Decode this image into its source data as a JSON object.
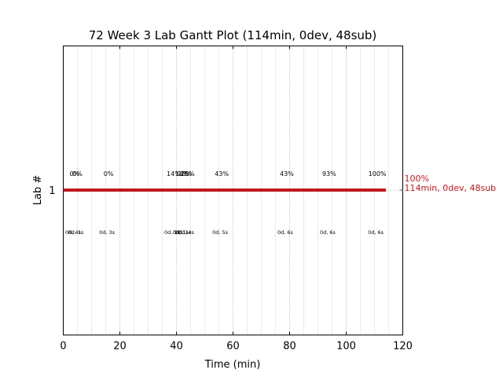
{
  "chart_data": {
    "type": "gantt",
    "title": "72 Week 3 Lab Gantt Plot (114min, 0dev, 48sub)",
    "xlabel": "Time (min)",
    "ylabel": "Lab #",
    "xlim": [
      0,
      120
    ],
    "x_ticks": [
      0,
      20,
      40,
      60,
      80,
      100,
      120
    ],
    "y_ticks": [
      1
    ],
    "grid": "vertical dotted, major every 20, minor every 5",
    "bar_color": "#c0171c",
    "bars": [
      {
        "lab": "1",
        "start": 0,
        "end": 114,
        "label_pct": "100%",
        "label_info": "114min, 0dev, 48sub"
      }
    ],
    "checkpoints": [
      {
        "x": 4,
        "pct": "0%",
        "info": "0d, 4s"
      },
      {
        "x": 5,
        "pct": "0%",
        "info": "0d, 1s"
      },
      {
        "x": 16,
        "pct": "0%",
        "info": "0d, 3s"
      },
      {
        "x": 39,
        "pct": "14%",
        "info": "0d, 1s"
      },
      {
        "x": 42,
        "pct": "14%",
        "info": "0d, 1s"
      },
      {
        "x": 43,
        "pct": "18%",
        "info": "0d, 1s"
      },
      {
        "x": 44,
        "pct": "25%",
        "info": "0d, 4s"
      },
      {
        "x": 56,
        "pct": "43%",
        "info": "0d, 5s"
      },
      {
        "x": 79,
        "pct": "43%",
        "info": "0d, 6s"
      },
      {
        "x": 94,
        "pct": "93%",
        "info": "0d, 6s"
      },
      {
        "x": 111,
        "pct": "100%",
        "info": "0d, 6s"
      }
    ]
  }
}
